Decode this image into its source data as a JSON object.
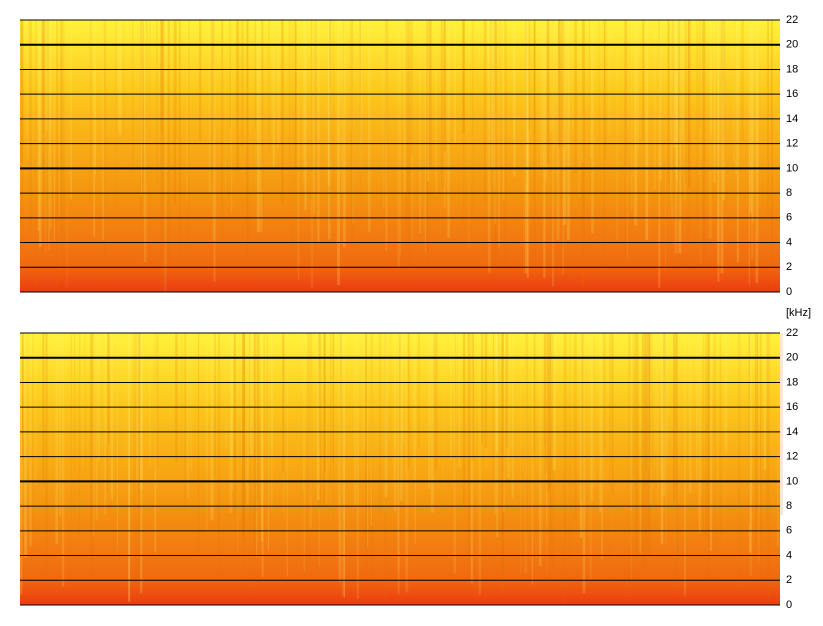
{
  "chart_data": [
    {
      "type": "spectrogram",
      "ylim": [
        0,
        22
      ],
      "yticks": [
        0,
        2,
        4,
        6,
        8,
        10,
        12,
        14,
        16,
        18,
        20,
        22
      ]
    },
    {
      "type": "spectrogram",
      "ylabel": "[kHz]",
      "ylim": [
        0,
        22
      ],
      "yticks": [
        0,
        2,
        4,
        6,
        8,
        10,
        12,
        14,
        16,
        18,
        20,
        22
      ]
    }
  ]
}
